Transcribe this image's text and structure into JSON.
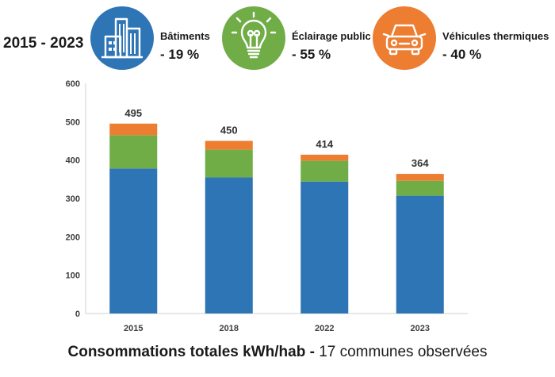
{
  "header": {
    "period": "2015 - 2023",
    "categories": [
      {
        "label": "Bâtiments",
        "change": "- 19 %",
        "icon": "building-icon",
        "color": "#2e75b6"
      },
      {
        "label": "Éclairage public",
        "change": "- 55 %",
        "icon": "lightbulb-icon",
        "color": "#70ad47"
      },
      {
        "label": "Véhicules thermiques",
        "change": "- 40 %",
        "icon": "car-icon",
        "color": "#ed7d31"
      }
    ]
  },
  "footer": {
    "title": "Consommations totales kWh/hab - ",
    "subtitle": "17 communes observées"
  },
  "chart_data": {
    "type": "bar",
    "stacked": true,
    "categories": [
      "2015",
      "2018",
      "2022",
      "2023"
    ],
    "series": [
      {
        "name": "Bâtiments",
        "color": "#2e75b6",
        "values": [
          378,
          355,
          344,
          307
        ]
      },
      {
        "name": "Éclairage public",
        "color": "#70ad47",
        "values": [
          87,
          72,
          54,
          39
        ]
      },
      {
        "name": "Véhicules thermiques",
        "color": "#ed7d31",
        "values": [
          30,
          23,
          16,
          18
        ]
      }
    ],
    "totals": [
      495,
      450,
      414,
      364
    ],
    "ylim": [
      0,
      600
    ],
    "yticks": [
      0,
      100,
      200,
      300,
      400,
      500,
      600
    ],
    "grid": false,
    "title": "Consommations totales kWh/hab",
    "xlabel": "",
    "ylabel": ""
  }
}
